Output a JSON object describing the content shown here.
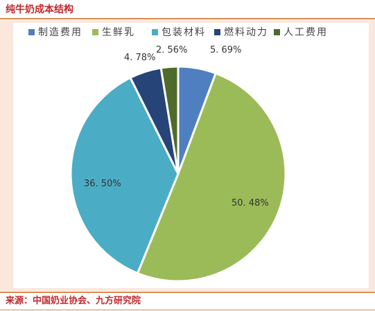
{
  "header": {
    "title": "纯牛奶成本结构"
  },
  "footer": {
    "source": "来源：中国奶业协会、九方研究院"
  },
  "chart_data": {
    "type": "pie",
    "title": "",
    "categories": [
      "制造费用",
      "生鲜乳",
      "包装材料",
      "燃料动力",
      "人工费用"
    ],
    "values": [
      5.69,
      50.48,
      36.5,
      4.78,
      2.56
    ],
    "labels": [
      "5. 69%",
      "50. 48%",
      "36. 50%",
      "4. 78%",
      "2. 56%"
    ],
    "colors": [
      "#4f7fc0",
      "#9bbb59",
      "#4bacc6",
      "#264478",
      "#4e6b2b"
    ],
    "legend_position": "top"
  }
}
